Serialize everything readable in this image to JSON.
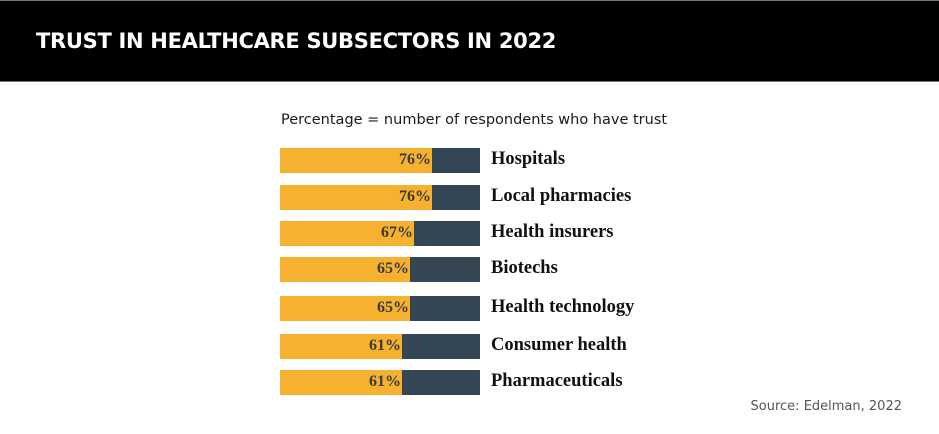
{
  "header": {
    "title": "TRUST IN HEALTHCARE SUBSECTORS IN 2022"
  },
  "colors": {
    "trust": "#F5B12F",
    "remainder": "#344654",
    "header_bg": "#000000"
  },
  "chart_data": {
    "type": "bar",
    "orientation": "horizontal",
    "stacked_to": 100,
    "title": "TRUST IN HEALTHCARE SUBSECTORS IN 2022",
    "subtitle": "Percentage = number of respondents who have trust",
    "categories": [
      "Hospitals",
      "Local pharmacies",
      "Health insurers",
      "Biotechs",
      "Health technology",
      "Consumer health",
      "Pharmaceuticals"
    ],
    "values": [
      76,
      76,
      67,
      65,
      65,
      61,
      61
    ],
    "value_labels": [
      "76%",
      "76%",
      "67%",
      "65%",
      "65%",
      "61%",
      "61%"
    ],
    "xlim": [
      0,
      100
    ],
    "unit": "%",
    "grid": false,
    "source": "Source: Edelman, 2022"
  }
}
